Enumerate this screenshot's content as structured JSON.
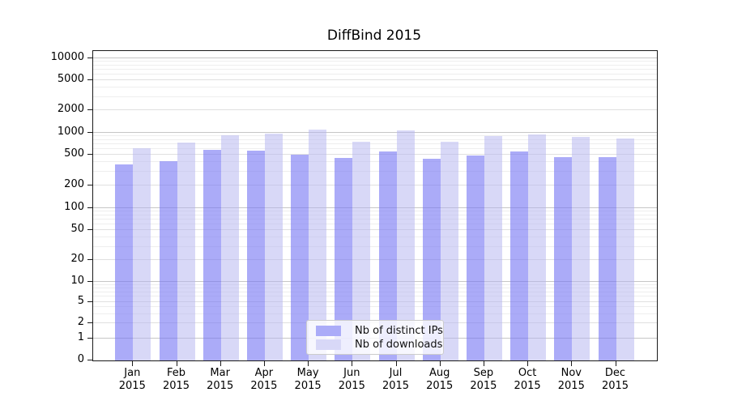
{
  "chart_data": {
    "type": "bar",
    "title": "DiffBind 2015",
    "categories": [
      "Jan",
      "Feb",
      "Mar",
      "Apr",
      "May",
      "Jun",
      "Jul",
      "Aug",
      "Sep",
      "Oct",
      "Nov",
      "Dec"
    ],
    "category_year": "2015",
    "series": [
      {
        "name": "Nb of distinct IPs",
        "color": "rgba(120,120,243,0.62)",
        "legend_color": "#abacf8",
        "values": [
          375,
          415,
          585,
          575,
          500,
          450,
          560,
          445,
          490,
          560,
          460,
          470
        ]
      },
      {
        "name": "Nb of downloads",
        "color": "rgba(180,180,240,0.52)",
        "legend_color": "#d8d8f7",
        "values": [
          620,
          730,
          940,
          975,
          1100,
          755,
          1085,
          750,
          915,
          965,
          890,
          840
        ]
      }
    ],
    "y_axis": {
      "scale": "symlog",
      "ticks": [
        0,
        1,
        2,
        5,
        10,
        20,
        50,
        100,
        200,
        500,
        1000,
        2000,
        5000,
        10000
      ],
      "range": [
        0,
        12000
      ]
    },
    "x_axis": {
      "ticks_per_month": true
    },
    "grid": "horizontal",
    "grid_colors": {
      "major": "#c6c6c6",
      "mid": "#e0e0e0",
      "minor": "#eeeeee"
    },
    "legend_position": "lower-center-inside"
  }
}
